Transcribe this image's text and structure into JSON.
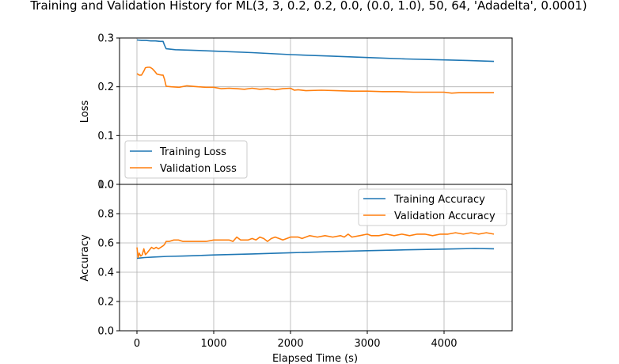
{
  "chart_data": {
    "type": "line",
    "title": "Training and Validation History for ML(3, 3, 0.2, 0.2, 0.0, (0.0, 1.0), 50, 64, 'Adadelta', 0.0001)",
    "xlabel": "Elapsed Time (s)",
    "x_ticks": [
      "0",
      "1000",
      "2000",
      "3000",
      "4000"
    ],
    "grid": true,
    "colors": {
      "training": "#1f77b4",
      "validation": "#ff7f0e"
    },
    "subplots": [
      {
        "id": "loss",
        "ylabel": "Loss",
        "ylim": [
          0.0,
          0.3
        ],
        "y_ticks": [
          "0.0",
          "0.1",
          "0.2",
          "0.3"
        ],
        "legend_placement": "bottom-left",
        "series": [
          {
            "name": "Training Loss",
            "color": "#1f77b4",
            "points": [
              [
                0,
                0.296
              ],
              [
                60,
                0.295
              ],
              [
                120,
                0.295
              ],
              [
                180,
                0.294
              ],
              [
                240,
                0.294
              ],
              [
                300,
                0.293
              ],
              [
                340,
                0.293
              ],
              [
                360,
                0.285
              ],
              [
                380,
                0.278
              ],
              [
                500,
                0.276
              ],
              [
                700,
                0.275
              ],
              [
                1000,
                0.273
              ],
              [
                1500,
                0.27
              ],
              [
                2000,
                0.266
              ],
              [
                2500,
                0.263
              ],
              [
                3000,
                0.26
              ],
              [
                3500,
                0.257
              ],
              [
                4000,
                0.255
              ],
              [
                4300,
                0.254
              ],
              [
                4650,
                0.252
              ]
            ]
          },
          {
            "name": "Validation Loss",
            "color": "#ff7f0e",
            "points": [
              [
                0,
                0.227
              ],
              [
                30,
                0.224
              ],
              [
                60,
                0.224
              ],
              [
                90,
                0.232
              ],
              [
                110,
                0.239
              ],
              [
                140,
                0.24
              ],
              [
                170,
                0.24
              ],
              [
                200,
                0.237
              ],
              [
                230,
                0.232
              ],
              [
                260,
                0.226
              ],
              [
                290,
                0.225
              ],
              [
                320,
                0.224
              ],
              [
                340,
                0.224
              ],
              [
                360,
                0.215
              ],
              [
                380,
                0.201
              ],
              [
                450,
                0.2
              ],
              [
                550,
                0.199
              ],
              [
                650,
                0.202
              ],
              [
                800,
                0.2
              ],
              [
                900,
                0.199
              ],
              [
                1000,
                0.199
              ],
              [
                1100,
                0.196
              ],
              [
                1200,
                0.197
              ],
              [
                1300,
                0.196
              ],
              [
                1400,
                0.195
              ],
              [
                1500,
                0.197
              ],
              [
                1600,
                0.195
              ],
              [
                1700,
                0.196
              ],
              [
                1800,
                0.194
              ],
              [
                1900,
                0.196
              ],
              [
                2000,
                0.197
              ],
              [
                2050,
                0.193
              ],
              [
                2100,
                0.194
              ],
              [
                2200,
                0.192
              ],
              [
                2400,
                0.193
              ],
              [
                2600,
                0.192
              ],
              [
                2800,
                0.191
              ],
              [
                3000,
                0.191
              ],
              [
                3200,
                0.19
              ],
              [
                3400,
                0.19
              ],
              [
                3600,
                0.189
              ],
              [
                3800,
                0.189
              ],
              [
                4000,
                0.189
              ],
              [
                4100,
                0.187
              ],
              [
                4200,
                0.188
              ],
              [
                4400,
                0.188
              ],
              [
                4650,
                0.188
              ]
            ]
          }
        ]
      },
      {
        "id": "accuracy",
        "ylabel": "Accuracy",
        "ylim": [
          0.0,
          1.0
        ],
        "y_ticks": [
          "0.0",
          "0.2",
          "0.4",
          "0.6",
          "0.8",
          "1.0"
        ],
        "legend_placement": "top-right",
        "series": [
          {
            "name": "Training Accuracy",
            "color": "#1f77b4",
            "points": [
              [
                0,
                0.495
              ],
              [
                100,
                0.5
              ],
              [
                200,
                0.503
              ],
              [
                400,
                0.508
              ],
              [
                600,
                0.51
              ],
              [
                800,
                0.514
              ],
              [
                1000,
                0.518
              ],
              [
                1500,
                0.525
              ],
              [
                2000,
                0.533
              ],
              [
                2500,
                0.54
              ],
              [
                3000,
                0.547
              ],
              [
                3500,
                0.553
              ],
              [
                4000,
                0.558
              ],
              [
                4400,
                0.562
              ],
              [
                4650,
                0.56
              ]
            ]
          },
          {
            "name": "Validation Accuracy",
            "color": "#ff7f0e",
            "points": [
              [
                0,
                0.57
              ],
              [
                15,
                0.5
              ],
              [
                30,
                0.53
              ],
              [
                50,
                0.51
              ],
              [
                70,
                0.52
              ],
              [
                90,
                0.56
              ],
              [
                110,
                0.52
              ],
              [
                130,
                0.53
              ],
              [
                160,
                0.55
              ],
              [
                190,
                0.57
              ],
              [
                220,
                0.56
              ],
              [
                250,
                0.57
              ],
              [
                280,
                0.56
              ],
              [
                310,
                0.57
              ],
              [
                340,
                0.58
              ],
              [
                360,
                0.59
              ],
              [
                380,
                0.61
              ],
              [
                420,
                0.61
              ],
              [
                480,
                0.62
              ],
              [
                540,
                0.62
              ],
              [
                600,
                0.61
              ],
              [
                700,
                0.61
              ],
              [
                800,
                0.61
              ],
              [
                900,
                0.61
              ],
              [
                1000,
                0.62
              ],
              [
                1100,
                0.62
              ],
              [
                1200,
                0.62
              ],
              [
                1250,
                0.61
              ],
              [
                1300,
                0.64
              ],
              [
                1350,
                0.62
              ],
              [
                1450,
                0.62
              ],
              [
                1500,
                0.63
              ],
              [
                1550,
                0.62
              ],
              [
                1600,
                0.64
              ],
              [
                1650,
                0.63
              ],
              [
                1700,
                0.61
              ],
              [
                1750,
                0.63
              ],
              [
                1800,
                0.64
              ],
              [
                1850,
                0.63
              ],
              [
                1900,
                0.62
              ],
              [
                2000,
                0.64
              ],
              [
                2100,
                0.64
              ],
              [
                2150,
                0.63
              ],
              [
                2250,
                0.65
              ],
              [
                2350,
                0.64
              ],
              [
                2450,
                0.65
              ],
              [
                2550,
                0.64
              ],
              [
                2650,
                0.65
              ],
              [
                2700,
                0.64
              ],
              [
                2750,
                0.66
              ],
              [
                2800,
                0.64
              ],
              [
                2900,
                0.65
              ],
              [
                3000,
                0.66
              ],
              [
                3050,
                0.65
              ],
              [
                3150,
                0.65
              ],
              [
                3250,
                0.66
              ],
              [
                3350,
                0.65
              ],
              [
                3450,
                0.66
              ],
              [
                3550,
                0.65
              ],
              [
                3650,
                0.66
              ],
              [
                3750,
                0.66
              ],
              [
                3850,
                0.65
              ],
              [
                3950,
                0.66
              ],
              [
                4050,
                0.66
              ],
              [
                4150,
                0.67
              ],
              [
                4250,
                0.66
              ],
              [
                4350,
                0.67
              ],
              [
                4450,
                0.66
              ],
              [
                4550,
                0.67
              ],
              [
                4650,
                0.66
              ]
            ]
          }
        ]
      }
    ]
  }
}
